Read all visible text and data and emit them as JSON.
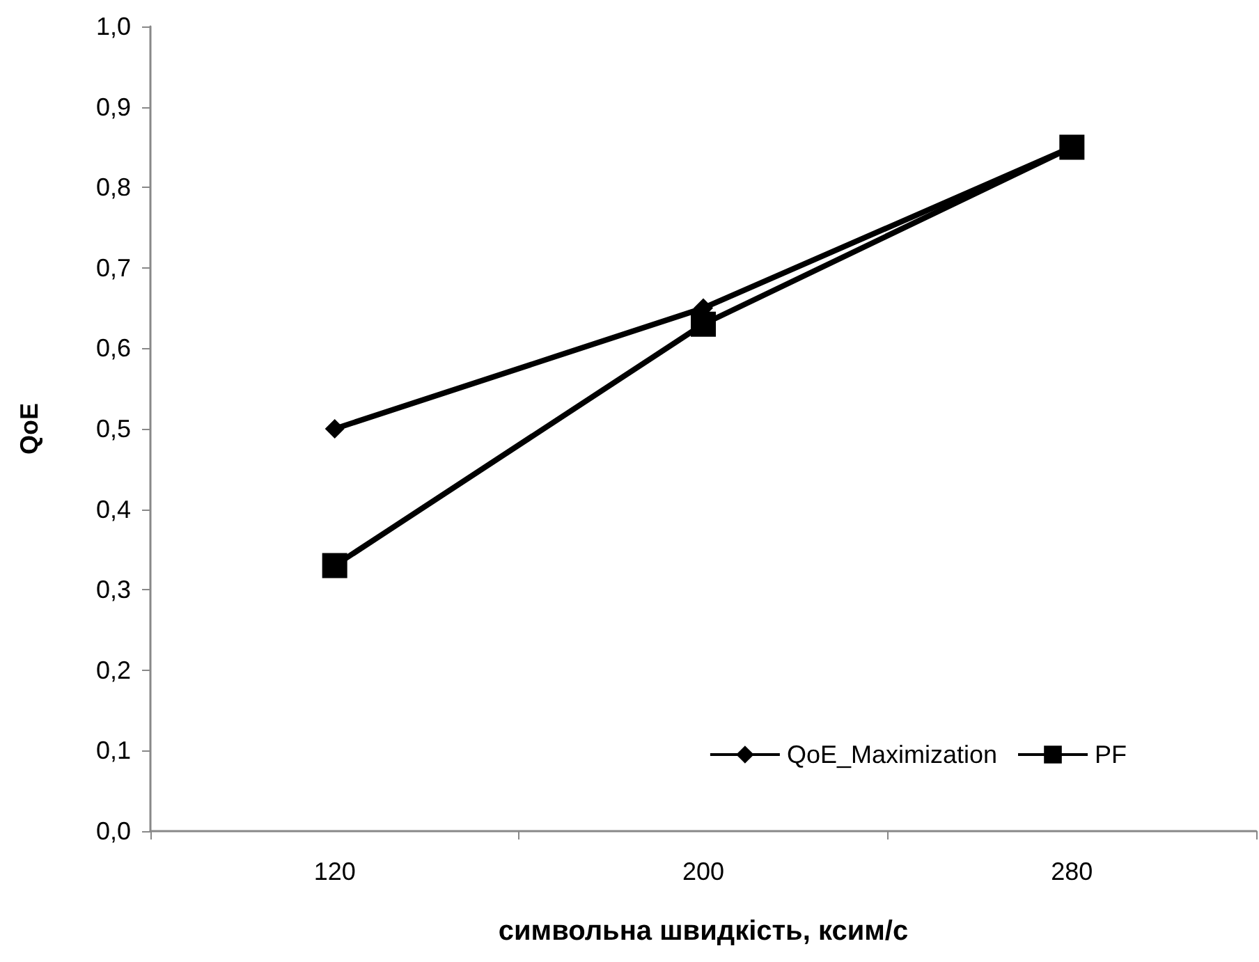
{
  "chart_data": {
    "type": "line",
    "xlabel": "символьна швидкість, ксим/с",
    "ylabel": "QoE",
    "categories": [
      "120",
      "200",
      "280"
    ],
    "series": [
      {
        "name": "QoE_Maximization",
        "color": "#000000",
        "marker": "diamond",
        "values": [
          0.5,
          0.65,
          0.85
        ]
      },
      {
        "name": "PF",
        "color": "#000000",
        "marker": "square",
        "values": [
          0.33,
          0.63,
          0.85
        ]
      }
    ],
    "ylim": [
      0,
      1
    ],
    "yticks": [
      {
        "value": 0,
        "label": "0,0"
      },
      {
        "value": 0.1,
        "label": "0,1"
      },
      {
        "value": 0.2,
        "label": "0,2"
      },
      {
        "value": 0.3,
        "label": "0,3"
      },
      {
        "value": 0.4,
        "label": "0,4"
      },
      {
        "value": 0.5,
        "label": "0,5"
      },
      {
        "value": 0.6,
        "label": "0,6"
      },
      {
        "value": 0.7,
        "label": "0,7"
      },
      {
        "value": 0.8,
        "label": "0,8"
      },
      {
        "value": 0.9,
        "label": "0,9"
      },
      {
        "value": 1,
        "label": "1,0"
      }
    ],
    "grid": false,
    "legend": "bottom right",
    "line_style": "solid"
  }
}
